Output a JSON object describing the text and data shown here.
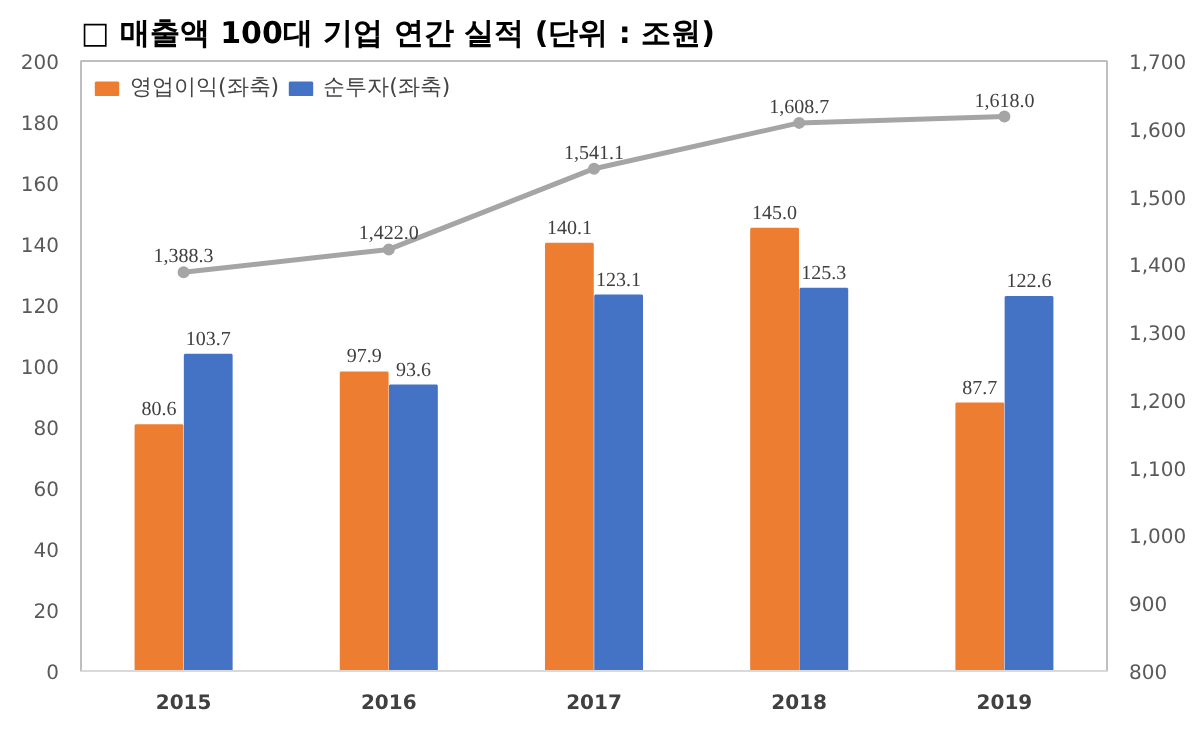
{
  "chart_data": {
    "type": "bar",
    "title": "□ 매출액 100대 기업 연간 실적 (단위 : 조원)",
    "categories": [
      "2015",
      "2016",
      "2017",
      "2018",
      "2019"
    ],
    "series": [
      {
        "name": "영업이익(좌축)",
        "color": "#ed7d31",
        "values": [
          80.6,
          97.9,
          140.1,
          145.0,
          87.7
        ],
        "value_labels": [
          "80.6",
          "97.9",
          "140.1",
          "145.0",
          "87.7"
        ]
      },
      {
        "name": "순투자(좌축)",
        "color": "#4472c4",
        "values": [
          103.7,
          93.6,
          123.1,
          125.3,
          122.6
        ],
        "value_labels": [
          "103.7",
          "93.6",
          "123.1",
          "125.3",
          "122.6"
        ]
      },
      {
        "type": "line",
        "axis": "y2",
        "color": "#a5a5a5",
        "marker": "circle",
        "values": [
          1388.3,
          1422.0,
          1541.1,
          1608.7,
          1618.0
        ],
        "value_labels": [
          "1,388.3",
          "1,422.0",
          "1,541.1",
          "1,608.7",
          "1,618.0"
        ]
      }
    ],
    "ylim": [
      0,
      200
    ],
    "yticks": [
      0,
      20,
      40,
      60,
      80,
      100,
      120,
      140,
      160,
      180,
      200
    ],
    "y2lim": [
      800,
      1700
    ],
    "y2ticks": [
      {
        "value": 800,
        "label": "800"
      },
      {
        "value": 900,
        "label": "900"
      },
      {
        "value": 1000,
        "label": "1,000"
      },
      {
        "value": 1100,
        "label": "1,100"
      },
      {
        "value": 1200,
        "label": "1,200"
      },
      {
        "value": 1300,
        "label": "1,300"
      },
      {
        "value": 1400,
        "label": "1,400"
      },
      {
        "value": 1500,
        "label": "1,500"
      },
      {
        "value": 1600,
        "label": "1,600"
      },
      {
        "value": 1700,
        "label": "1,700"
      }
    ],
    "grid": false,
    "legend": "top left"
  }
}
